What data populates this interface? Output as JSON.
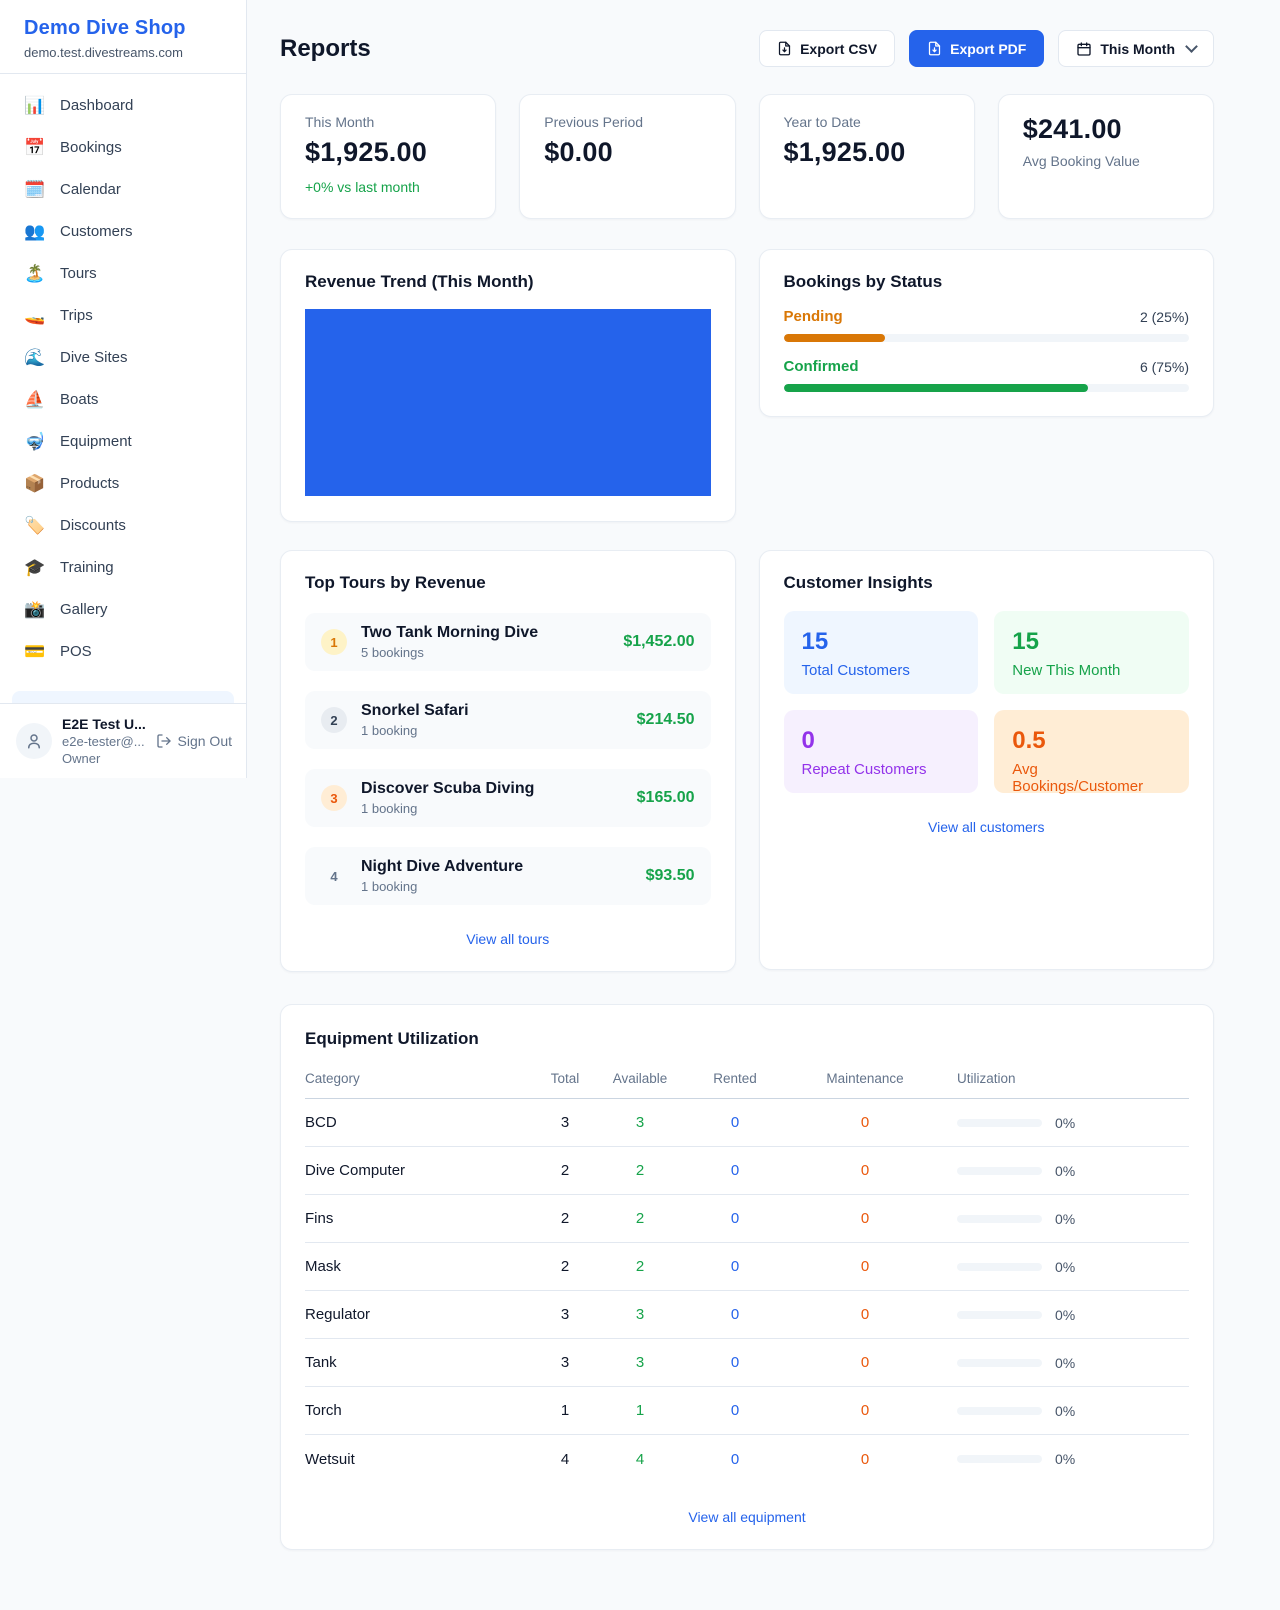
{
  "colors": {
    "accent_blue": "#2563eb",
    "green": "#16a34a",
    "orange_pending": "#d97706",
    "orange_deep": "#ea580c",
    "purple": "#9333ea",
    "muted_text": "#64748b",
    "page_bg": "#f8fafc"
  },
  "sidebar": {
    "brand": {
      "name": "Demo Dive Shop",
      "domain": "demo.test.divestreams.com"
    },
    "nav": [
      {
        "glyph": "📊",
        "label": "Dashboard"
      },
      {
        "glyph": "📅",
        "label": "Bookings"
      },
      {
        "glyph": "🗓️",
        "label": "Calendar"
      },
      {
        "glyph": "👥",
        "label": "Customers"
      },
      {
        "glyph": "🏝️",
        "label": "Tours"
      },
      {
        "glyph": "🚤",
        "label": "Trips"
      },
      {
        "glyph": "🌊",
        "label": "Dive Sites"
      },
      {
        "glyph": "⛵",
        "label": "Boats"
      },
      {
        "glyph": "🤿",
        "label": "Equipment"
      },
      {
        "glyph": "📦",
        "label": "Products"
      },
      {
        "glyph": "🏷️",
        "label": "Discounts"
      },
      {
        "glyph": "🎓",
        "label": "Training"
      },
      {
        "glyph": "📸",
        "label": "Gallery"
      },
      {
        "glyph": "💳",
        "label": "POS"
      }
    ],
    "user": {
      "name": "E2E Test U...",
      "email": "e2e-tester@...",
      "role": "Owner",
      "sign_out_label": "Sign Out"
    }
  },
  "header": {
    "title": "Reports",
    "export_csv_label": "Export CSV",
    "export_pdf_label": "Export PDF",
    "period_label": "This Month"
  },
  "stats": [
    {
      "label": "This Month",
      "value": "$1,925.00",
      "delta": "+0% vs last month"
    },
    {
      "label": "Previous Period",
      "value": "$0.00"
    },
    {
      "label": "Year to Date",
      "value": "$1,925.00"
    },
    {
      "label": "Avg Booking Value",
      "value": "$241.00"
    }
  ],
  "revenue_trend": {
    "title": "Revenue Trend (This Month)"
  },
  "bookings_by_status": {
    "title": "Bookings by Status",
    "rows": [
      {
        "label": "Pending",
        "count_text": "2 (25%)",
        "pct": 25
      },
      {
        "label": "Confirmed",
        "count_text": "6 (75%)",
        "pct": 75
      }
    ]
  },
  "top_tours": {
    "title": "Top Tours by Revenue",
    "items": [
      {
        "rank": "1",
        "name": "Two Tank Morning Dive",
        "bookings": "5 bookings",
        "revenue": "$1,452.00"
      },
      {
        "rank": "2",
        "name": "Snorkel Safari",
        "bookings": "1 booking",
        "revenue": "$214.50"
      },
      {
        "rank": "3",
        "name": "Discover Scuba Diving",
        "bookings": "1 booking",
        "revenue": "$165.00"
      },
      {
        "rank": "4",
        "name": "Night Dive Adventure",
        "bookings": "1 booking",
        "revenue": "$93.50"
      }
    ],
    "link": "View all tours"
  },
  "customer_insights": {
    "title": "Customer Insights",
    "tiles": [
      {
        "value": "15",
        "label": "Total Customers"
      },
      {
        "value": "15",
        "label": "New This Month"
      },
      {
        "value": "0",
        "label": "Repeat Customers"
      },
      {
        "value": "0.5",
        "label": "Avg Bookings/Customer"
      }
    ],
    "link": "View all customers"
  },
  "equipment": {
    "title": "Equipment Utilization",
    "columns": [
      "Category",
      "Total",
      "Available",
      "Rented",
      "Maintenance",
      "Utilization"
    ],
    "rows": [
      {
        "category": "BCD",
        "total": "3",
        "available": "3",
        "rented": "0",
        "maintenance": "0",
        "utilization": "0%",
        "utilization_pct": 0
      },
      {
        "category": "Dive Computer",
        "total": "2",
        "available": "2",
        "rented": "0",
        "maintenance": "0",
        "utilization": "0%",
        "utilization_pct": 0
      },
      {
        "category": "Fins",
        "total": "2",
        "available": "2",
        "rented": "0",
        "maintenance": "0",
        "utilization": "0%",
        "utilization_pct": 0
      },
      {
        "category": "Mask",
        "total": "2",
        "available": "2",
        "rented": "0",
        "maintenance": "0",
        "utilization": "0%",
        "utilization_pct": 0
      },
      {
        "category": "Regulator",
        "total": "3",
        "available": "3",
        "rented": "0",
        "maintenance": "0",
        "utilization": "0%",
        "utilization_pct": 0
      },
      {
        "category": "Tank",
        "total": "3",
        "available": "3",
        "rented": "0",
        "maintenance": "0",
        "utilization": "0%",
        "utilization_pct": 0
      },
      {
        "category": "Torch",
        "total": "1",
        "available": "1",
        "rented": "0",
        "maintenance": "0",
        "utilization": "0%",
        "utilization_pct": 0
      },
      {
        "category": "Wetsuit",
        "total": "4",
        "available": "4",
        "rented": "0",
        "maintenance": "0",
        "utilization": "0%",
        "utilization_pct": 0
      }
    ],
    "link": "View all equipment"
  },
  "chart_data": [
    {
      "type": "bar",
      "title": "Revenue Trend (This Month)",
      "categories": [
        "This Month"
      ],
      "values": [
        1925
      ],
      "bar_color": "#2563eb",
      "notes": "single solid blue bar filling the entire plot area; no axes, ticks or labels visible"
    },
    {
      "type": "bar",
      "title": "Bookings by Status",
      "categories": [
        "Pending",
        "Confirmed"
      ],
      "values": [
        2,
        6
      ],
      "percentages": [
        25,
        75
      ],
      "colors": [
        "#d97706",
        "#16a34a"
      ],
      "layout": "horizontal progress bars with right-aligned count labels"
    }
  ]
}
